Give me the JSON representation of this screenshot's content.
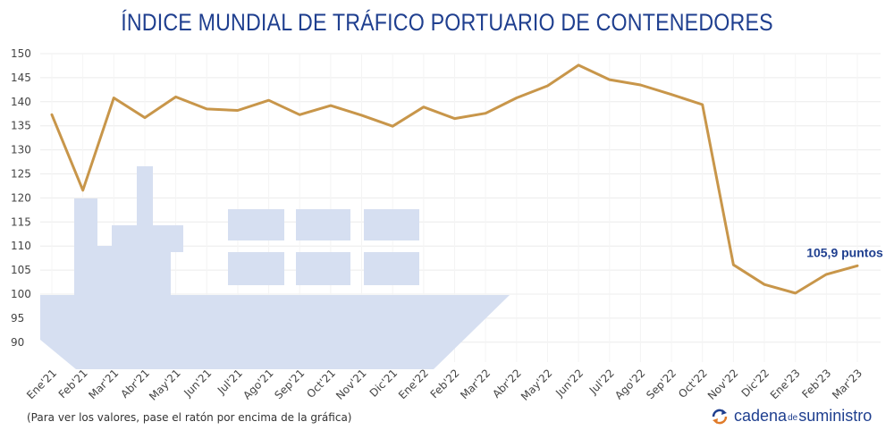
{
  "title": "ÍNDICE MUNDIAL DE TRÁFICO PORTUARIO DE CONTENEDORES",
  "footnote": "(Para ver los valores, pase el ratón por encima de la gráfica)",
  "brand": {
    "part1": "cadena",
    "part2": "de",
    "part3": "suministro",
    "icon": "arrows-cycle-icon"
  },
  "colors": {
    "line": "#c8964a",
    "title": "#1f3f8f",
    "ship": "#d6dff1",
    "grid": "#ececec"
  },
  "chart_data": {
    "type": "line",
    "title": "ÍNDICE MUNDIAL DE TRÁFICO PORTUARIO DE CONTENEDORES",
    "categories": [
      "Ene'21",
      "Feb'21",
      "Mar'21",
      "Abr'21",
      "May'21",
      "Jun'21",
      "Jul'21",
      "Ago'21",
      "Sep'21",
      "Oct'21",
      "Nov'21",
      "Dic'21",
      "Ene'22",
      "Feb'22",
      "Mar'22",
      "Abr'22",
      "May'22",
      "Jun'22",
      "Jul'22",
      "Ago'22",
      "Sep'22",
      "Oct'22",
      "Nov'22",
      "Dic'22",
      "Ene'23",
      "Feb'23",
      "Mar'23"
    ],
    "values": [
      137.3,
      121.6,
      140.8,
      136.7,
      141.0,
      138.5,
      138.2,
      140.3,
      137.3,
      139.2,
      137.2,
      134.9,
      138.9,
      136.5,
      137.6,
      140.8,
      143.3,
      147.6,
      144.6,
      143.5,
      141.5,
      139.4,
      106.1,
      102.0,
      100.2,
      104.1,
      105.9
    ],
    "yticks": [
      90,
      95,
      100,
      105,
      110,
      115,
      120,
      125,
      130,
      135,
      140,
      145,
      150
    ],
    "ylim": [
      87,
      150
    ],
    "grid": true,
    "end_label": "105,9 puntos"
  }
}
